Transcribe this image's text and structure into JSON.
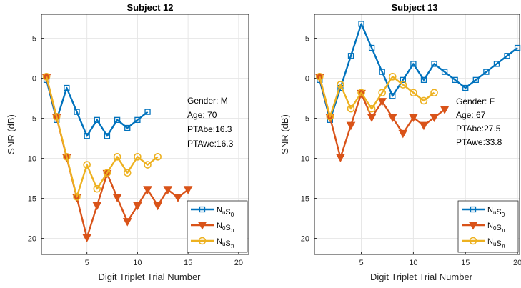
{
  "chart_data": [
    {
      "type": "line",
      "title": "Subject 12",
      "xlabel": "Digit Triplet Trial Number",
      "ylabel": "SNR (dB)",
      "xlim": [
        0.5,
        21
      ],
      "ylim": [
        -22,
        8
      ],
      "xticks": [
        5,
        10,
        15,
        20
      ],
      "yticks": [
        5,
        0,
        -5,
        -10,
        -15,
        -20
      ],
      "grid": true,
      "legend_position": "bottom-right",
      "annotations": [
        "Gender: M",
        "Age: 70",
        "PTAbe:16.3",
        "PTAwe:16.3"
      ],
      "series": [
        {
          "name": "NuS0",
          "name_main": [
            "N",
            "S"
          ],
          "name_sub": [
            "u",
            "0"
          ],
          "color": "#0072BD",
          "marker": "square",
          "x": [
            1,
            2,
            3,
            4,
            5,
            6,
            7,
            8,
            9,
            10,
            11
          ],
          "y": [
            -0.2,
            -5.2,
            -1.2,
            -4.2,
            -7.2,
            -5.2,
            -7.2,
            -5.2,
            -6.2,
            -5.2,
            -4.2
          ]
        },
        {
          "name": "N0Sπ",
          "name_main": [
            "N",
            "S"
          ],
          "name_sub": [
            "0",
            "π"
          ],
          "color": "#D95319",
          "marker": "triangle-down",
          "x": [
            1,
            2,
            3,
            4,
            5,
            6,
            7,
            8,
            9,
            10,
            11,
            12,
            13,
            14,
            15
          ],
          "y": [
            0.1,
            -4.9,
            -9.9,
            -14.9,
            -19.9,
            -15.9,
            -11.9,
            -14.9,
            -17.9,
            -15.9,
            -13.9,
            -15.9,
            -13.9,
            -14.9,
            -13.9
          ]
        },
        {
          "name": "NuSπ",
          "name_main": [
            "N",
            "S"
          ],
          "name_sub": [
            "u",
            "π"
          ],
          "color": "#EDB120",
          "marker": "circle",
          "x": [
            1,
            2,
            3,
            4,
            5,
            6,
            7,
            8,
            9,
            10,
            11,
            12
          ],
          "y": [
            0.2,
            -4.8,
            -9.8,
            -14.8,
            -10.8,
            -13.8,
            -11.8,
            -9.8,
            -11.8,
            -9.8,
            -10.8,
            -9.8
          ]
        }
      ]
    },
    {
      "type": "line",
      "title": "Subject 13",
      "xlabel": "Digit Triplet Trial Number",
      "ylabel": "SNR (dB)",
      "xlim": [
        0.5,
        20.2
      ],
      "ylim": [
        -22,
        8
      ],
      "xticks": [
        5,
        10,
        15,
        20
      ],
      "yticks": [
        5,
        0,
        -5,
        -10,
        -15,
        -20
      ],
      "grid": true,
      "legend_position": "bottom-right",
      "annotations": [
        "Gender: F",
        "Age: 67",
        "PTAbe:27.5",
        "PTAwe:33.8"
      ],
      "series": [
        {
          "name": "NuS0",
          "name_main": [
            "N",
            "S"
          ],
          "name_sub": [
            "u",
            "0"
          ],
          "color": "#0072BD",
          "marker": "square",
          "x": [
            1,
            2,
            3,
            4,
            5,
            6,
            7,
            8,
            9,
            10,
            11,
            12,
            13,
            14,
            15,
            16,
            17,
            18,
            19,
            20
          ],
          "y": [
            -0.2,
            -5.2,
            -1.2,
            2.8,
            6.8,
            3.8,
            0.8,
            -2.2,
            -0.2,
            1.8,
            -0.2,
            1.8,
            0.8,
            -0.2,
            -1.2,
            -0.2,
            0.8,
            1.8,
            2.8,
            3.8
          ]
        },
        {
          "name": "N0Sπ",
          "name_main": [
            "N",
            "S"
          ],
          "name_sub": [
            "0",
            "π"
          ],
          "color": "#D95319",
          "marker": "triangle-down",
          "x": [
            1,
            2,
            3,
            4,
            5,
            6,
            7,
            8,
            9,
            10,
            11,
            12,
            13
          ],
          "y": [
            0.1,
            -4.9,
            -9.9,
            -5.9,
            -1.9,
            -4.9,
            -2.9,
            -4.9,
            -6.9,
            -4.9,
            -5.9,
            -4.9,
            -3.9
          ]
        },
        {
          "name": "NuSπ",
          "name_main": [
            "N",
            "S"
          ],
          "name_sub": [
            "u",
            "π"
          ],
          "color": "#EDB120",
          "marker": "circle",
          "x": [
            1,
            2,
            3,
            4,
            5,
            6,
            7,
            8,
            9,
            10,
            11,
            12
          ],
          "y": [
            0.2,
            -4.8,
            -0.8,
            -3.8,
            -1.8,
            -3.8,
            -1.8,
            0.2,
            -0.8,
            -1.8,
            -2.8,
            -1.8
          ]
        }
      ]
    }
  ]
}
